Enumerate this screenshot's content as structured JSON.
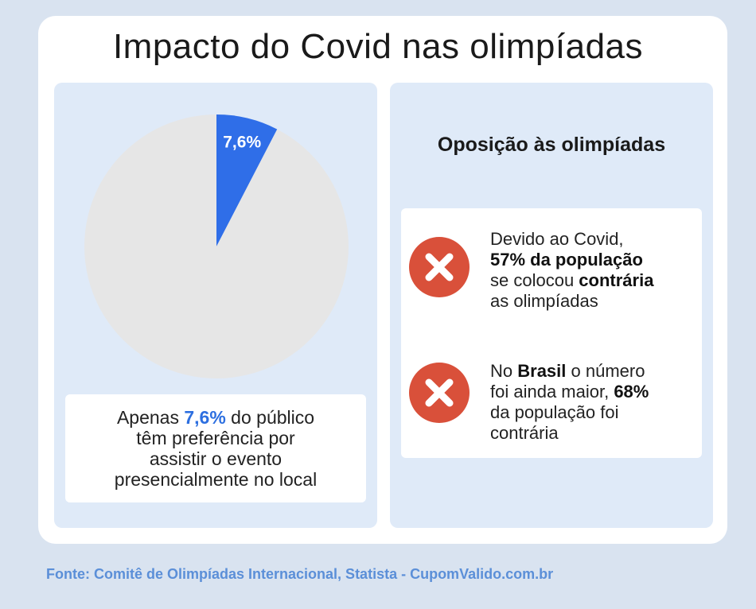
{
  "title": "Impacto do Covid nas olimpíadas",
  "chart_data": {
    "type": "pie",
    "slices": [
      {
        "label": "7,6%",
        "value": 7.6,
        "color": "#2f6ee8"
      },
      {
        "label": "",
        "value": 92.4,
        "color": "#e6e6e6"
      }
    ]
  },
  "left_caption": {
    "line1_pre": "Apenas ",
    "line1_highlight": "7,6%",
    "line1_post": " do público",
    "line2": "têm preferência por",
    "line3": "assistir o evento",
    "line4": "presencialmente no local"
  },
  "right": {
    "heading": "Oposição às olimpíadas",
    "item1": {
      "line1": "Devido ao Covid,",
      "line2_bold": "57% da população",
      "line3_pre": "se colocou ",
      "line3_bold": "contrária",
      "line4": "as olimpíadas"
    },
    "item2": {
      "line1_pre": "No ",
      "line1_bold": "Brasil",
      "line1_post": " o número",
      "line2_pre": "foi ainda maior, ",
      "line2_bold": "68%",
      "line3": "da população foi",
      "line4": "contrária"
    }
  },
  "icons": {
    "item1": "x-circle-icon",
    "item2": "x-circle-icon"
  },
  "colors": {
    "accent_blue": "#2f6ee8",
    "x_red": "#d9503a",
    "source_blue": "#5b8fd8"
  },
  "source": "Fonte: Comitê de Olimpíadas Internacional, Statista - CupomValido.com.br"
}
